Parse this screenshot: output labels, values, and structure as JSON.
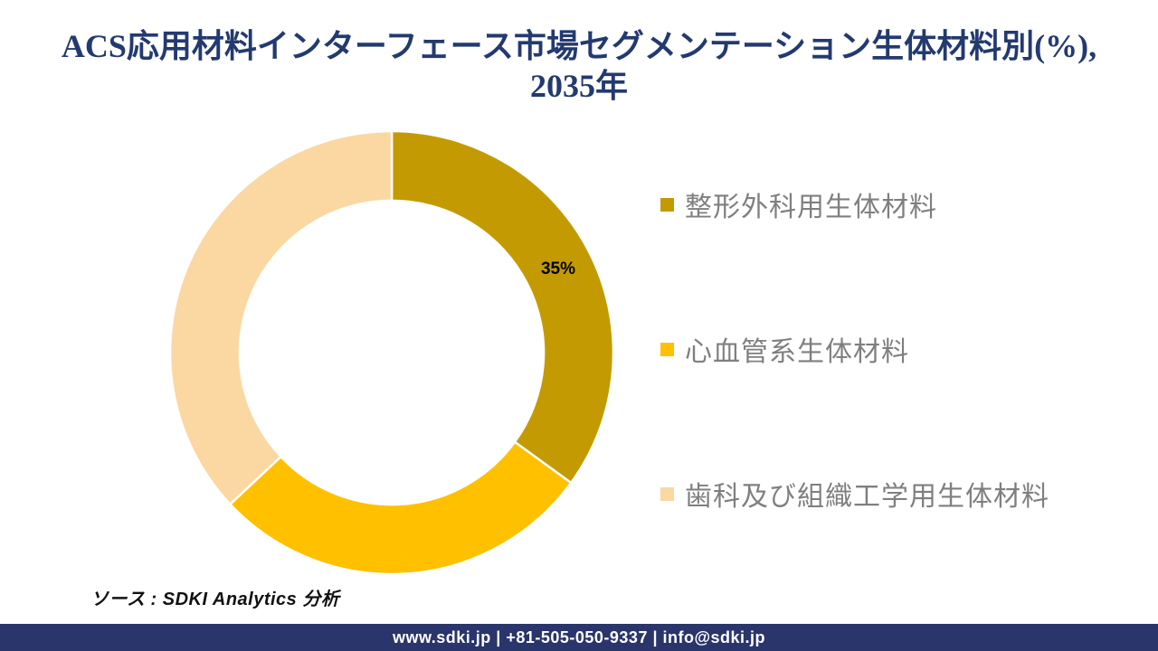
{
  "title": {
    "line1": "ACS応用材料インターフェース市場セグメンテーション生体材料別(%),",
    "line2": "2035年",
    "color": "#233A70"
  },
  "chart_data": {
    "type": "pie",
    "subtype": "donut",
    "title": "ACS応用材料インターフェース市場セグメンテーション生体材料別(%), 2035年",
    "start_angle_deg": 0,
    "direction": "clockwise",
    "inner_radius_ratio": 0.686,
    "legend_position": "right",
    "categories": [
      "整形外科用生体材料",
      "心血管系生体材料",
      "歯科及び組織工学用生体材料"
    ],
    "values": [
      35,
      28,
      37
    ],
    "segments": [
      {
        "label": "整形外科用生体材料",
        "value": 35,
        "color": "#C49A03",
        "data_label": "35%"
      },
      {
        "label": "心血管系生体材料",
        "value": 28,
        "color": "#FFC000",
        "data_label": ""
      },
      {
        "label": "歯科及び組織工学用生体材料",
        "value": 37,
        "color": "#FBD7A2",
        "data_label": ""
      }
    ],
    "data_label_color": "#000000",
    "segment_border_color": "#FFFFFF"
  },
  "legend": {
    "text_color": "#7F7F7F"
  },
  "source": {
    "text": "ソース : SDKI Analytics 分析"
  },
  "footer": {
    "text": "www.sdki.jp | +81-505-050-9337 | info@sdki.jp",
    "background": "#2A356B",
    "text_color": "#FFFFFF"
  }
}
